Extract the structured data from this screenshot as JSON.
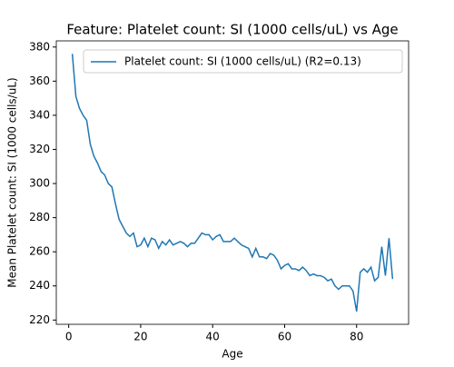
{
  "chart_data": {
    "type": "line",
    "title": "Feature: Platelet count: SI (1000 cells/uL) vs Age",
    "xlabel": "Age",
    "ylabel": "Mean Platelet count: SI (1000 cells/uL)",
    "x": [
      1,
      2,
      3,
      4,
      5,
      6,
      7,
      8,
      9,
      10,
      11,
      12,
      13,
      14,
      15,
      16,
      17,
      18,
      19,
      20,
      21,
      22,
      23,
      24,
      25,
      26,
      27,
      28,
      29,
      30,
      31,
      32,
      33,
      34,
      35,
      36,
      37,
      38,
      39,
      40,
      41,
      42,
      43,
      44,
      45,
      46,
      47,
      48,
      49,
      50,
      51,
      52,
      53,
      54,
      55,
      56,
      57,
      58,
      59,
      60,
      61,
      62,
      63,
      64,
      65,
      66,
      67,
      68,
      69,
      70,
      71,
      72,
      73,
      74,
      75,
      76,
      77,
      78,
      79,
      80,
      81,
      82,
      83,
      84,
      85,
      86,
      87,
      88,
      89,
      90
    ],
    "series": [
      {
        "name": "Platelet count: SI (1000 cells/uL) (R2=0.13)",
        "color": "#1f77b4",
        "values": [
          376,
          351,
          344,
          340,
          337,
          323,
          316,
          312,
          307,
          305,
          300,
          298,
          288,
          279,
          275,
          271,
          269,
          271,
          263,
          264,
          268,
          263,
          268,
          267,
          262,
          266,
          264,
          267,
          264,
          265,
          266,
          265,
          263,
          265,
          265,
          268,
          271,
          270,
          270,
          267,
          269,
          270,
          266,
          266,
          266,
          268,
          266,
          264,
          263,
          262,
          257,
          262,
          257,
          257,
          256,
          259,
          258,
          255,
          250,
          252,
          253,
          250,
          250,
          249,
          251,
          249,
          246,
          247,
          246,
          246,
          245,
          243,
          244,
          240,
          238,
          240,
          240,
          240,
          237,
          225,
          248,
          250,
          248,
          251,
          243,
          245,
          263,
          246,
          268,
          244
        ]
      }
    ],
    "xlim": [
      -3.45,
      94.45
    ],
    "xticks": [
      0,
      20,
      40,
      60,
      80
    ],
    "ylim": [
      217.5,
      383.6
    ],
    "yticks": [
      220,
      240,
      260,
      280,
      300,
      320,
      340,
      360,
      380
    ],
    "grid": false,
    "legend": "upper right"
  }
}
